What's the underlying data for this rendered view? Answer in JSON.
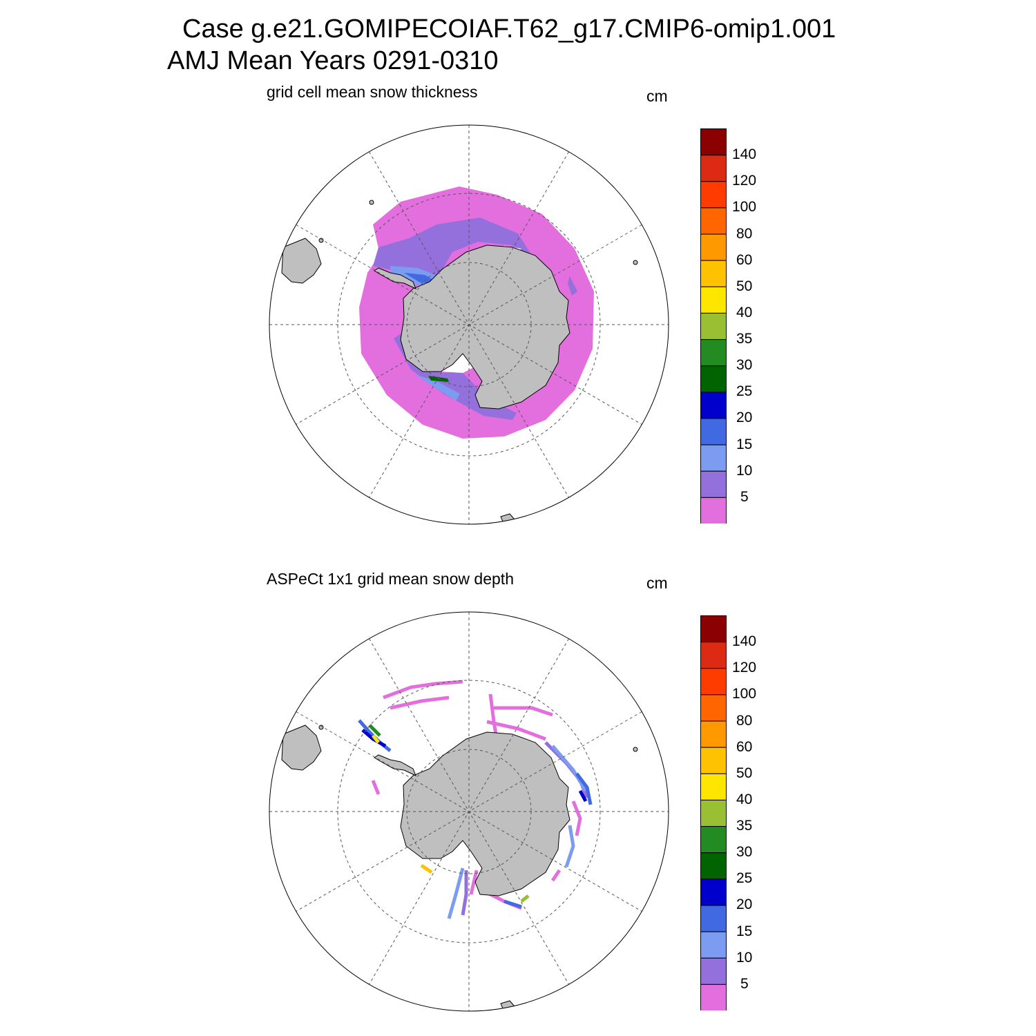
{
  "figure": {
    "title_line1": "Case g.e21.GOMIPECOIAF.T62_g17.CMIP6-omip1.001",
    "title_line2": "AMJ Mean   Years 0291-0310"
  },
  "colorbar": {
    "units": "cm",
    "labels": [
      "140",
      "120",
      "100",
      "80",
      "60",
      "50",
      "40",
      "35",
      "30",
      "25",
      "20",
      "15",
      "10",
      "5"
    ],
    "colors": [
      "#8b0000",
      "#dd2a12",
      "#ff3c00",
      "#ff6600",
      "#ff9900",
      "#ffc200",
      "#ffe600",
      "#99bf33",
      "#228b22",
      "#006400",
      "#0000cd",
      "#4169e1",
      "#7b9cf0",
      "#9370db",
      "#e36fde"
    ]
  },
  "panels": [
    {
      "title": "grid cell mean snow thickness",
      "units": "cm"
    },
    {
      "title": "ASPeCt 1x1 grid mean snow depth",
      "units": "cm"
    }
  ],
  "map_style": {
    "land": "#bfbfbf",
    "coast": "#000000",
    "grid": "#555555"
  }
}
